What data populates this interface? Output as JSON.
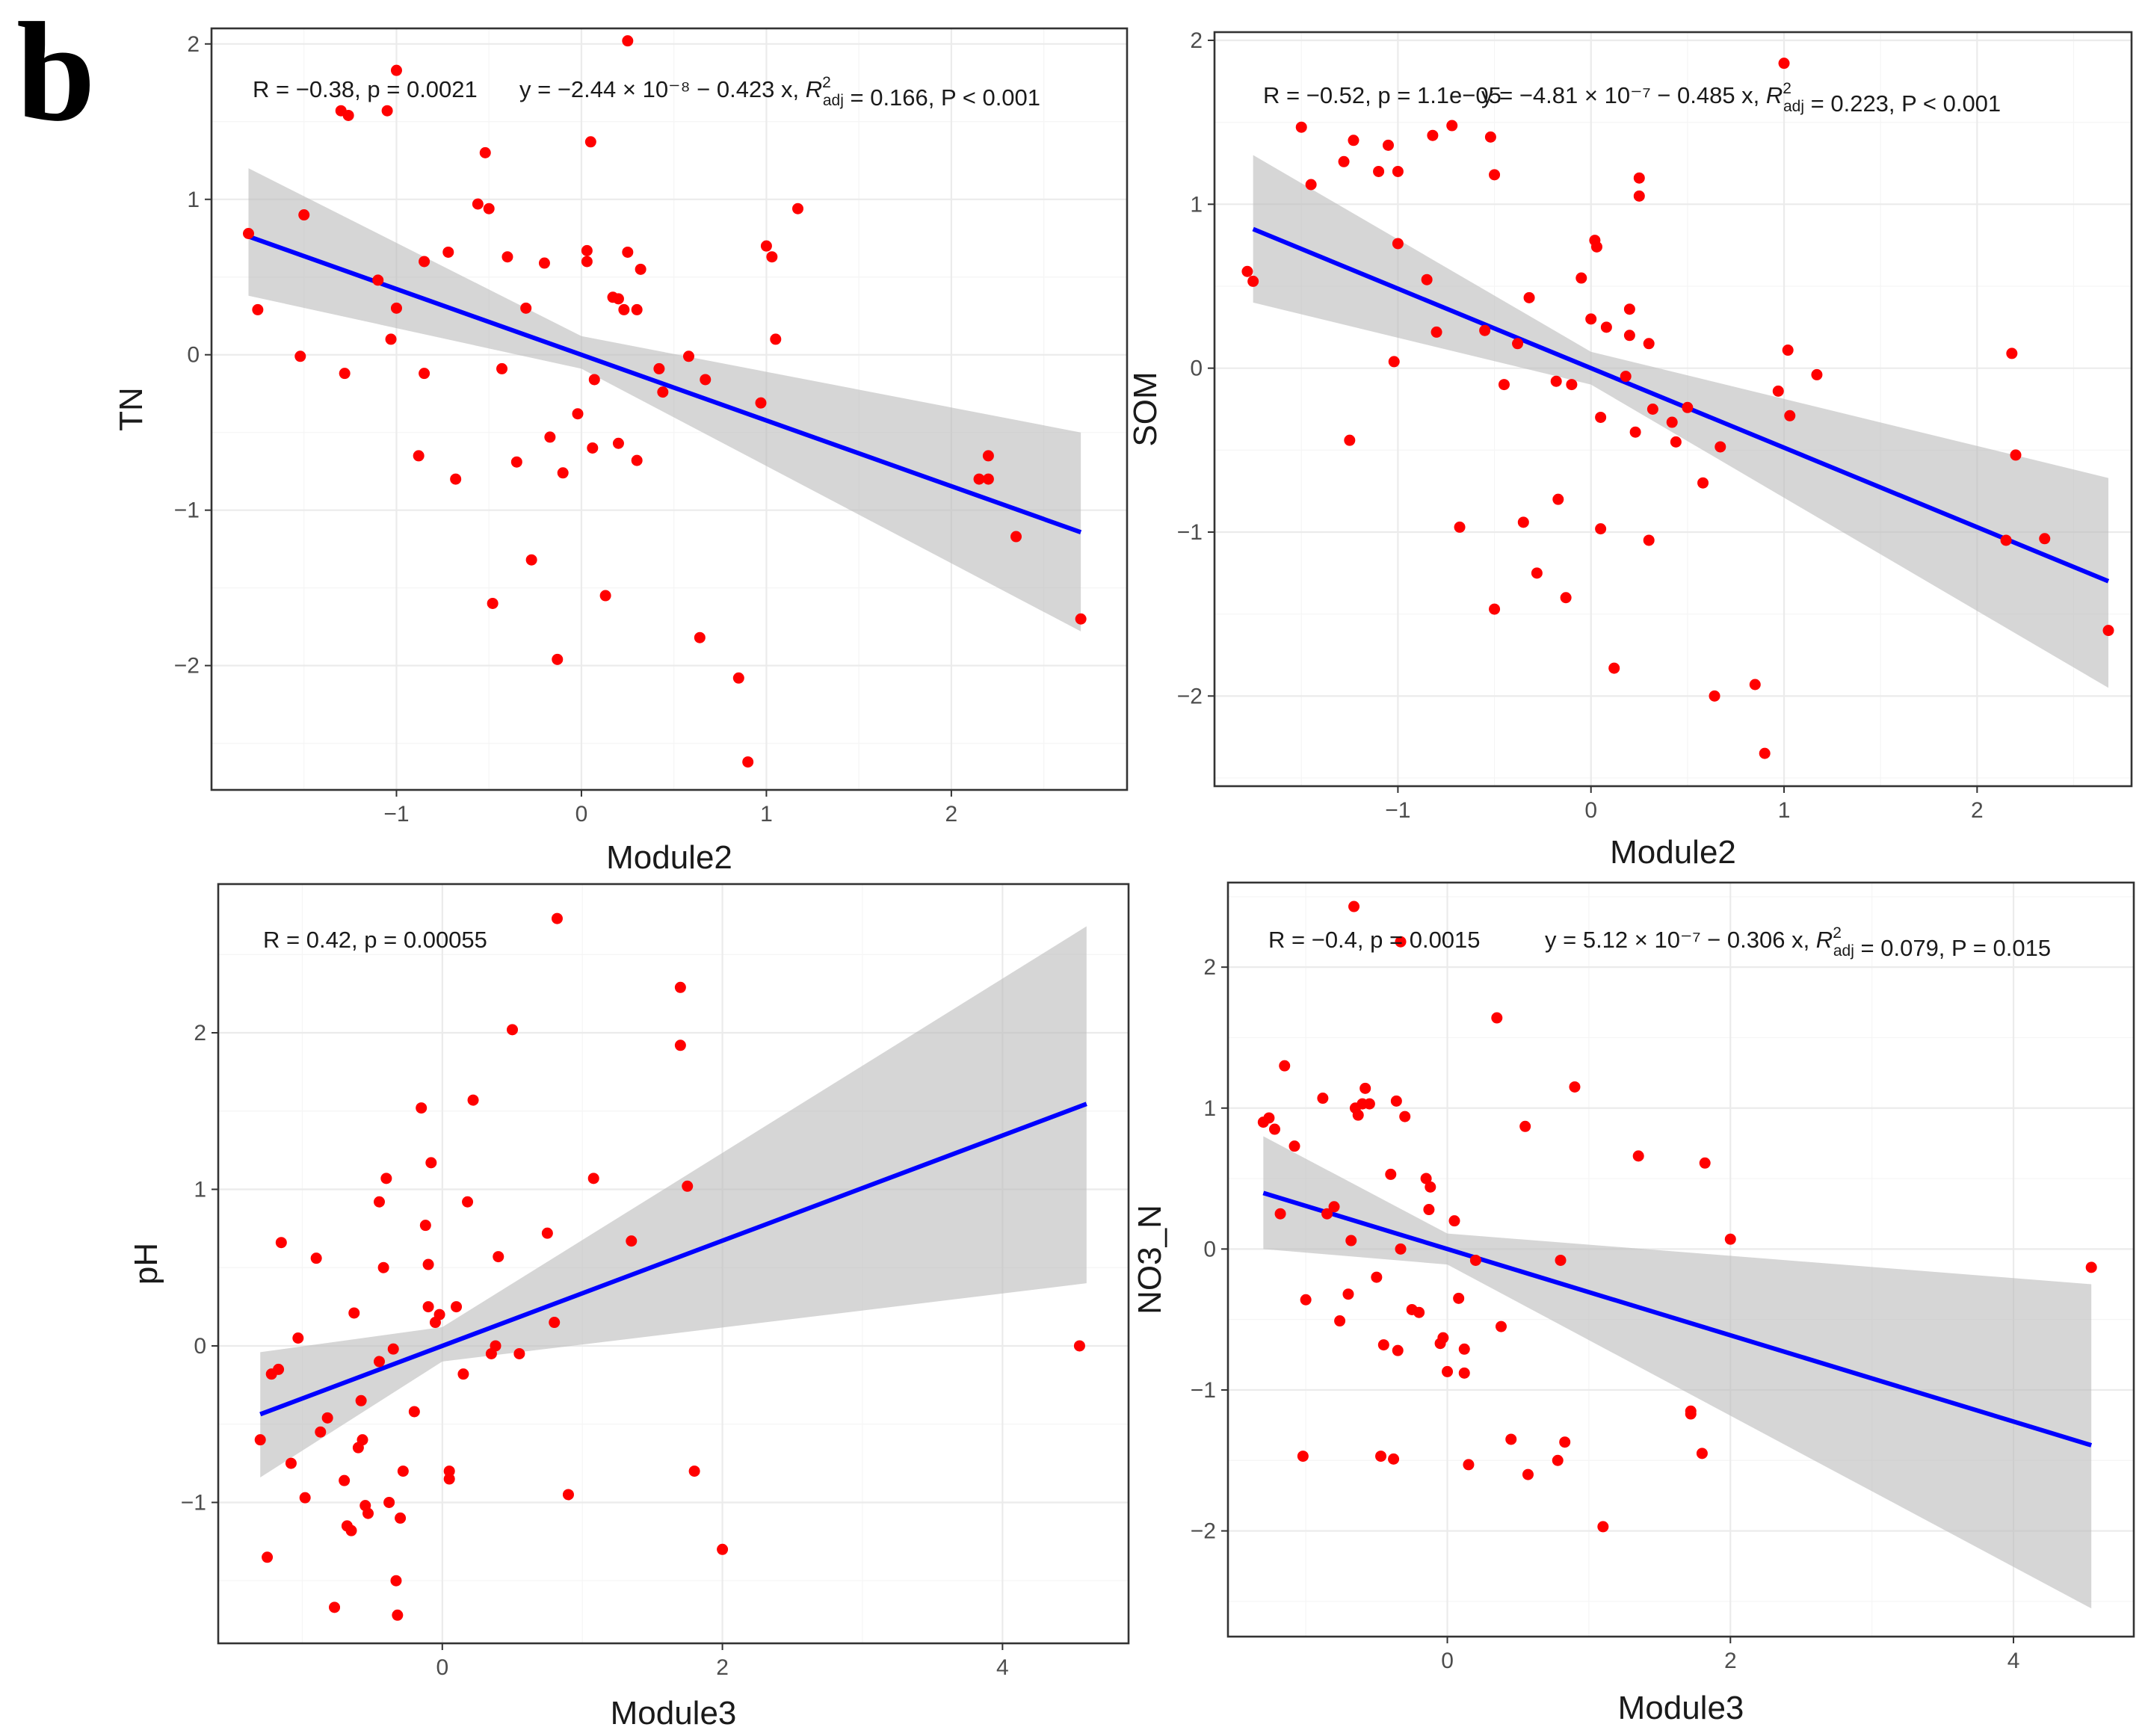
{
  "panel_label": "b",
  "colors": {
    "points": "#ff0000",
    "fit_line": "#0000ff",
    "ci_band": "#bdbdbd",
    "grid": "#ebebeb",
    "frame": "#333333"
  },
  "chart_data": [
    {
      "type": "scatter",
      "name": "TN-vs-Module2",
      "xlabel": "Module2",
      "ylabel": "TN",
      "xlim": [
        -2.0,
        2.95
      ],
      "ylim": [
        -2.8,
        2.1
      ],
      "x_ticks": [
        -1,
        0,
        1,
        2
      ],
      "y_ticks": [
        -2,
        -1,
        0,
        1,
        2
      ],
      "x_tick_labels": [
        "−1",
        "0",
        "1",
        "2"
      ],
      "y_tick_labels": [
        "−2",
        "−1",
        "0",
        "1",
        "2"
      ],
      "annotation": {
        "r": "R = −0.38, p = 0.0021",
        "eq": "y = −2.44 × 10⁻⁸ − 0.423 x, R²adj = 0.166, P < 0.001"
      },
      "fit": {
        "intercept": -0.0,
        "slope": -0.423,
        "x_range": [
          -1.8,
          2.7
        ]
      },
      "ci_band": [
        [
          -1.8,
          0.38,
          1.2
        ],
        [
          0.0,
          -0.09,
          0.12
        ],
        [
          2.7,
          -1.78,
          -0.5
        ]
      ],
      "points": [
        [
          -1.8,
          0.78
        ],
        [
          -1.75,
          0.29
        ],
        [
          -1.5,
          0.9
        ],
        [
          -1.52,
          -0.01
        ],
        [
          -1.3,
          1.57
        ],
        [
          -1.26,
          1.54
        ],
        [
          -1.05,
          1.57
        ],
        [
          -1.0,
          1.83
        ],
        [
          -1.28,
          -0.12
        ],
        [
          -1.03,
          0.1
        ],
        [
          -1.0,
          0.3
        ],
        [
          -1.1,
          0.48
        ],
        [
          -0.85,
          0.6
        ],
        [
          -0.85,
          -0.12
        ],
        [
          -0.88,
          -0.65
        ],
        [
          -0.72,
          0.66
        ],
        [
          -0.68,
          -0.8
        ],
        [
          -0.56,
          0.97
        ],
        [
          -0.52,
          1.3
        ],
        [
          -0.5,
          0.94
        ],
        [
          -0.43,
          -0.09
        ],
        [
          -0.35,
          -0.69
        ],
        [
          -0.3,
          0.3
        ],
        [
          -0.27,
          -1.32
        ],
        [
          -0.48,
          -1.6
        ],
        [
          -0.4,
          0.63
        ],
        [
          -0.2,
          0.59
        ],
        [
          -0.17,
          -0.53
        ],
        [
          -0.13,
          -1.96
        ],
        [
          -0.1,
          -0.76
        ],
        [
          -0.02,
          -0.38
        ],
        [
          0.03,
          0.6
        ],
        [
          0.03,
          0.67
        ],
        [
          0.05,
          1.37
        ],
        [
          0.06,
          -0.6
        ],
        [
          0.07,
          -0.16
        ],
        [
          0.13,
          -1.55
        ],
        [
          0.17,
          0.37
        ],
        [
          0.2,
          0.36
        ],
        [
          0.2,
          -0.57
        ],
        [
          0.23,
          0.29
        ],
        [
          0.25,
          2.02
        ],
        [
          0.25,
          0.66
        ],
        [
          0.3,
          0.29
        ],
        [
          0.3,
          -0.68
        ],
        [
          0.32,
          0.55
        ],
        [
          0.42,
          -0.09
        ],
        [
          0.44,
          -0.24
        ],
        [
          0.58,
          -0.01
        ],
        [
          0.64,
          -1.82
        ],
        [
          0.67,
          -0.16
        ],
        [
          0.85,
          -2.08
        ],
        [
          0.9,
          -2.62
        ],
        [
          0.97,
          -0.31
        ],
        [
          1.0,
          0.7
        ],
        [
          1.03,
          0.63
        ],
        [
          1.05,
          0.1
        ],
        [
          1.17,
          0.94
        ],
        [
          2.15,
          -0.8
        ],
        [
          2.2,
          -0.8
        ],
        [
          2.2,
          -0.65
        ],
        [
          2.35,
          -1.17
        ],
        [
          2.7,
          -1.7
        ]
      ]
    },
    {
      "type": "scatter",
      "name": "SOM-vs-Module2",
      "xlabel": "Module2",
      "ylabel": "SOM",
      "xlim": [
        -1.95,
        2.8
      ],
      "ylim": [
        -2.55,
        2.05
      ],
      "x_ticks": [
        -1,
        0,
        1,
        2
      ],
      "y_ticks": [
        -2,
        -1,
        0,
        1,
        2
      ],
      "x_tick_labels": [
        "−1",
        "0",
        "1",
        "2"
      ],
      "y_tick_labels": [
        "−2",
        "−1",
        "0",
        "1",
        "2"
      ],
      "annotation": {
        "r": "R = −0.52, p = 1.1e−05",
        "eq": "y = −4.81 × 10⁻⁷ − 0.485 x, R²adj = 0.223, P < 0.001"
      },
      "fit": {
        "intercept": 0.0,
        "slope": -0.485,
        "x_range": [
          -1.75,
          2.68
        ]
      },
      "ci_band": [
        [
          -1.75,
          0.4,
          1.3
        ],
        [
          0.0,
          -0.1,
          0.1
        ],
        [
          2.68,
          -1.95,
          -0.67
        ]
      ],
      "points": [
        [
          -1.78,
          0.59
        ],
        [
          -1.75,
          0.53
        ],
        [
          -1.5,
          1.47
        ],
        [
          -1.45,
          1.12
        ],
        [
          -1.28,
          1.26
        ],
        [
          -1.23,
          1.39
        ],
        [
          -1.25,
          -0.44
        ],
        [
          -1.1,
          1.2
        ],
        [
          -1.05,
          1.36
        ],
        [
          -1.0,
          1.2
        ],
        [
          -1.02,
          0.04
        ],
        [
          -1.0,
          0.76
        ],
        [
          -0.85,
          0.54
        ],
        [
          -0.82,
          1.42
        ],
        [
          -0.8,
          0.22
        ],
        [
          -0.72,
          1.48
        ],
        [
          -0.68,
          -0.97
        ],
        [
          -0.55,
          0.23
        ],
        [
          -0.52,
          1.41
        ],
        [
          -0.5,
          1.18
        ],
        [
          -0.5,
          -1.47
        ],
        [
          -0.45,
          -0.1
        ],
        [
          -0.38,
          0.15
        ],
        [
          -0.35,
          -0.94
        ],
        [
          -0.32,
          0.43
        ],
        [
          -0.28,
          -1.25
        ],
        [
          -0.18,
          -0.08
        ],
        [
          -0.17,
          -0.8
        ],
        [
          -0.13,
          -1.4
        ],
        [
          -0.1,
          -0.1
        ],
        [
          -0.05,
          0.55
        ],
        [
          0.0,
          0.3
        ],
        [
          0.02,
          0.78
        ],
        [
          0.03,
          0.74
        ],
        [
          0.05,
          -0.3
        ],
        [
          0.05,
          -0.98
        ],
        [
          0.08,
          0.25
        ],
        [
          0.12,
          -1.83
        ],
        [
          0.18,
          -0.05
        ],
        [
          0.2,
          0.2
        ],
        [
          0.2,
          0.36
        ],
        [
          0.23,
          -0.39
        ],
        [
          0.25,
          1.16
        ],
        [
          0.25,
          1.05
        ],
        [
          0.3,
          0.15
        ],
        [
          0.3,
          -1.05
        ],
        [
          0.32,
          -0.25
        ],
        [
          0.42,
          -0.33
        ],
        [
          0.44,
          -0.45
        ],
        [
          0.5,
          -0.24
        ],
        [
          0.58,
          -0.7
        ],
        [
          0.64,
          -2.0
        ],
        [
          0.67,
          -0.48
        ],
        [
          0.85,
          -1.93
        ],
        [
          0.9,
          -2.35
        ],
        [
          0.97,
          -0.14
        ],
        [
          1.0,
          1.86
        ],
        [
          1.02,
          0.11
        ],
        [
          1.03,
          -0.29
        ],
        [
          1.17,
          -0.04
        ],
        [
          2.15,
          -1.05
        ],
        [
          2.18,
          0.09
        ],
        [
          2.2,
          -0.53
        ],
        [
          2.35,
          -1.04
        ],
        [
          2.68,
          -1.6
        ]
      ]
    },
    {
      "type": "scatter",
      "name": "pH-vs-Module3",
      "xlabel": "Module3",
      "ylabel": "pH",
      "xlim": [
        -1.6,
        4.9
      ],
      "ylim": [
        -1.9,
        2.95
      ],
      "x_ticks": [
        0,
        2,
        4
      ],
      "y_ticks": [
        -1,
        0,
        1,
        2
      ],
      "x_tick_labels": [
        "0",
        "2",
        "4"
      ],
      "y_tick_labels": [
        "−1",
        "0",
        "1",
        "2"
      ],
      "annotation": {
        "r": "R = 0.42, p = 0.00055",
        "eq": ""
      },
      "fit": {
        "intercept": 0.0,
        "slope": 0.336,
        "x_range": [
          -1.3,
          4.6
        ]
      },
      "ci_band": [
        [
          -1.3,
          -0.84,
          -0.04
        ],
        [
          0.0,
          -0.1,
          0.12
        ],
        [
          4.6,
          0.4,
          2.68
        ]
      ],
      "points": [
        [
          -1.3,
          -0.6
        ],
        [
          -1.25,
          -1.35
        ],
        [
          -1.22,
          -0.18
        ],
        [
          -1.17,
          -0.15
        ],
        [
          -1.15,
          0.66
        ],
        [
          -1.08,
          -0.75
        ],
        [
          -1.03,
          0.05
        ],
        [
          -0.98,
          -0.97
        ],
        [
          -0.9,
          0.56
        ],
        [
          -0.87,
          -0.55
        ],
        [
          -0.82,
          -0.46
        ],
        [
          -0.77,
          -1.67
        ],
        [
          -0.7,
          -0.86
        ],
        [
          -0.68,
          -1.15
        ],
        [
          -0.65,
          -1.18
        ],
        [
          -0.63,
          0.21
        ],
        [
          -0.6,
          -0.65
        ],
        [
          -0.58,
          -0.35
        ],
        [
          -0.57,
          -0.6
        ],
        [
          -0.55,
          -1.02
        ],
        [
          -0.53,
          -1.07
        ],
        [
          -0.45,
          0.92
        ],
        [
          -0.45,
          -0.1
        ],
        [
          -0.42,
          0.5
        ],
        [
          -0.4,
          1.07
        ],
        [
          -0.38,
          -1.0
        ],
        [
          -0.35,
          -0.02
        ],
        [
          -0.33,
          -1.5
        ],
        [
          -0.32,
          -1.72
        ],
        [
          -0.3,
          -1.1
        ],
        [
          -0.28,
          -0.8
        ],
        [
          -0.2,
          -0.42
        ],
        [
          -0.15,
          1.52
        ],
        [
          -0.12,
          0.77
        ],
        [
          -0.1,
          0.52
        ],
        [
          -0.1,
          0.25
        ],
        [
          -0.08,
          1.17
        ],
        [
          -0.05,
          0.15
        ],
        [
          -0.02,
          0.2
        ],
        [
          0.05,
          -0.85
        ],
        [
          0.05,
          -0.8
        ],
        [
          0.1,
          0.25
        ],
        [
          0.15,
          -0.18
        ],
        [
          0.18,
          0.92
        ],
        [
          0.22,
          1.57
        ],
        [
          0.35,
          -0.05
        ],
        [
          0.38,
          0.0
        ],
        [
          0.4,
          0.57
        ],
        [
          0.5,
          2.02
        ],
        [
          0.55,
          -0.05
        ],
        [
          0.75,
          0.72
        ],
        [
          0.8,
          0.15
        ],
        [
          0.82,
          2.73
        ],
        [
          0.9,
          -0.95
        ],
        [
          1.08,
          1.07
        ],
        [
          1.35,
          0.67
        ],
        [
          1.7,
          2.29
        ],
        [
          1.7,
          1.92
        ],
        [
          1.75,
          1.02
        ],
        [
          1.8,
          -0.8
        ],
        [
          2.0,
          -1.3
        ],
        [
          4.55,
          0.0
        ]
      ]
    },
    {
      "type": "scatter",
      "name": "NO3_N-vs-Module3",
      "xlabel": "Module3",
      "ylabel": "NO3_N",
      "xlim": [
        -1.55,
        4.85
      ],
      "ylim": [
        -2.75,
        2.6
      ],
      "x_ticks": [
        0,
        2,
        4
      ],
      "y_ticks": [
        -2,
        -1,
        0,
        1,
        2
      ],
      "x_tick_labels": [
        "0",
        "2",
        "4"
      ],
      "y_tick_labels": [
        "−2",
        "−1",
        "0",
        "1",
        "2"
      ],
      "annotation": {
        "r": "R = −0.4, p = 0.0015",
        "eq": "y = 5.12 × 10⁻⁷ − 0.306 x, R²adj = 0.079, P = 0.015"
      },
      "fit": {
        "intercept": 0.0,
        "slope": -0.306,
        "x_range": [
          -1.3,
          4.55
        ]
      },
      "ci_band": [
        [
          -1.3,
          0.0,
          0.8
        ],
        [
          0.0,
          -0.11,
          0.11
        ],
        [
          4.55,
          -2.55,
          -0.25
        ]
      ],
      "points": [
        [
          -1.3,
          0.9
        ],
        [
          -1.26,
          0.93
        ],
        [
          -1.22,
          0.85
        ],
        [
          -1.18,
          0.25
        ],
        [
          -1.15,
          1.3
        ],
        [
          -1.08,
          0.73
        ],
        [
          -1.02,
          -1.47
        ],
        [
          -1.0,
          -0.36
        ],
        [
          -0.88,
          1.07
        ],
        [
          -0.85,
          0.25
        ],
        [
          -0.8,
          0.3
        ],
        [
          -0.76,
          -0.51
        ],
        [
          -0.7,
          -0.32
        ],
        [
          -0.68,
          0.06
        ],
        [
          -0.66,
          2.43
        ],
        [
          -0.65,
          1.0
        ],
        [
          -0.63,
          0.95
        ],
        [
          -0.6,
          1.03
        ],
        [
          -0.58,
          1.14
        ],
        [
          -0.55,
          1.03
        ],
        [
          -0.5,
          -0.2
        ],
        [
          -0.47,
          -1.47
        ],
        [
          -0.45,
          -0.68
        ],
        [
          -0.4,
          0.53
        ],
        [
          -0.38,
          -1.49
        ],
        [
          -0.36,
          1.05
        ],
        [
          -0.35,
          -0.72
        ],
        [
          -0.33,
          2.18
        ],
        [
          -0.33,
          0.0
        ],
        [
          -0.3,
          0.94
        ],
        [
          -0.25,
          -0.43
        ],
        [
          -0.2,
          -0.45
        ],
        [
          -0.15,
          0.5
        ],
        [
          -0.13,
          0.28
        ],
        [
          -0.12,
          0.44
        ],
        [
          -0.05,
          -0.67
        ],
        [
          -0.03,
          -0.63
        ],
        [
          0.0,
          -0.87
        ],
        [
          0.05,
          0.2
        ],
        [
          0.08,
          -0.35
        ],
        [
          0.12,
          -0.71
        ],
        [
          0.12,
          -0.88
        ],
        [
          0.15,
          -1.53
        ],
        [
          0.2,
          -0.08
        ],
        [
          0.35,
          1.64
        ],
        [
          0.38,
          -0.55
        ],
        [
          0.45,
          -1.35
        ],
        [
          0.55,
          0.87
        ],
        [
          0.57,
          -1.6
        ],
        [
          0.78,
          -1.5
        ],
        [
          0.8,
          -0.08
        ],
        [
          0.83,
          -1.37
        ],
        [
          0.9,
          1.15
        ],
        [
          1.1,
          -1.97
        ],
        [
          1.35,
          0.66
        ],
        [
          1.72,
          -1.17
        ],
        [
          1.72,
          -1.15
        ],
        [
          1.8,
          -1.45
        ],
        [
          1.82,
          0.61
        ],
        [
          2.0,
          0.07
        ],
        [
          4.55,
          -0.13
        ]
      ]
    }
  ]
}
